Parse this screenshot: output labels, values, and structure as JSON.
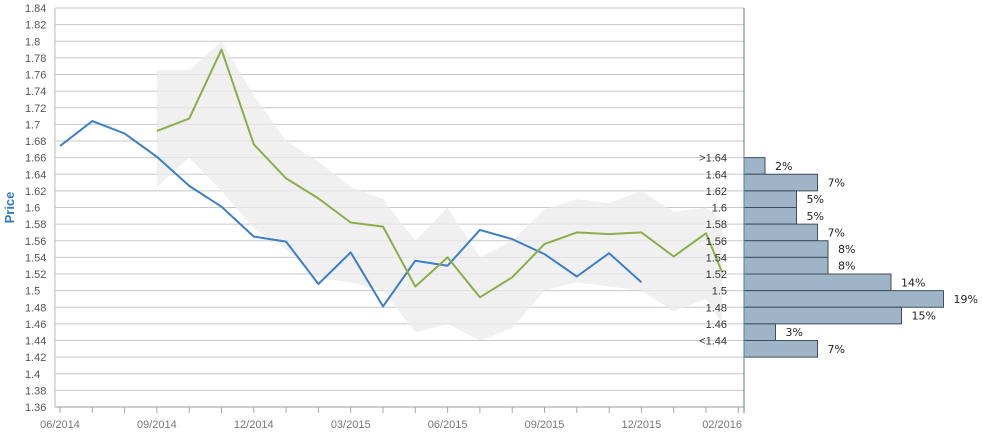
{
  "chart_data": {
    "type": "line",
    "ylabel": "Price",
    "ylim": [
      1.36,
      1.84
    ],
    "y_ticks": [
      "1.36",
      "1.38",
      "1.4",
      "1.42",
      "1.44",
      "1.46",
      "1.48",
      "1.5",
      "1.52",
      "1.54",
      "1.56",
      "1.58",
      "1.6",
      "1.62",
      "1.64",
      "1.66",
      "1.68",
      "1.7",
      "1.72",
      "1.74",
      "1.76",
      "1.78",
      "1.8",
      "1.82",
      "1.84"
    ],
    "x_labels": [
      {
        "label": "06/2014",
        "month": 0
      },
      {
        "label": "09/2014",
        "month": 3
      },
      {
        "label": "12/2014",
        "month": 6
      },
      {
        "label": "03/2015",
        "month": 9
      },
      {
        "label": "06/2015",
        "month": 12
      },
      {
        "label": "09/2015",
        "month": 15
      },
      {
        "label": "12/2015",
        "month": 18
      },
      {
        "label": "02/2016",
        "month": 20.5
      }
    ],
    "grid": true,
    "series": [
      {
        "color": "#3a7fc8",
        "points": [
          {
            "month": 0,
            "value": 1.674
          },
          {
            "month": 1,
            "value": 1.704
          },
          {
            "month": 2,
            "value": 1.689
          },
          {
            "month": 3,
            "value": 1.661
          },
          {
            "month": 4,
            "value": 1.626
          },
          {
            "month": 5,
            "value": 1.601
          },
          {
            "month": 6,
            "value": 1.565
          },
          {
            "month": 7,
            "value": 1.559
          },
          {
            "month": 8,
            "value": 1.508
          },
          {
            "month": 9,
            "value": 1.546
          },
          {
            "month": 10,
            "value": 1.481
          },
          {
            "month": 11,
            "value": 1.536
          },
          {
            "month": 12,
            "value": 1.53
          },
          {
            "month": 13,
            "value": 1.573
          },
          {
            "month": 14,
            "value": 1.562
          },
          {
            "month": 15,
            "value": 1.544
          },
          {
            "month": 16,
            "value": 1.517
          },
          {
            "month": 17,
            "value": 1.545
          },
          {
            "month": 18,
            "value": 1.51
          }
        ]
      },
      {
        "color": "#8aae4a",
        "points": [
          {
            "month": 3,
            "value": 1.692
          },
          {
            "month": 4,
            "value": 1.707
          },
          {
            "month": 5,
            "value": 1.79
          },
          {
            "month": 6,
            "value": 1.676
          },
          {
            "month": 7,
            "value": 1.635
          },
          {
            "month": 8,
            "value": 1.611
          },
          {
            "month": 9,
            "value": 1.582
          },
          {
            "month": 10,
            "value": 1.577
          },
          {
            "month": 11,
            "value": 1.505
          },
          {
            "month": 12,
            "value": 1.54
          },
          {
            "month": 13,
            "value": 1.492
          },
          {
            "month": 14,
            "value": 1.516
          },
          {
            "month": 15,
            "value": 1.556
          },
          {
            "month": 16,
            "value": 1.57
          },
          {
            "month": 17,
            "value": 1.568
          },
          {
            "month": 18,
            "value": 1.57
          },
          {
            "month": 19,
            "value": 1.541
          },
          {
            "month": 20,
            "value": 1.569
          },
          {
            "month": 20.5,
            "value": 1.522
          }
        ]
      }
    ],
    "band": {
      "color": "#ebebeb",
      "upper": [
        {
          "month": 3,
          "value": 1.765
        },
        {
          "month": 4,
          "value": 1.765
        },
        {
          "month": 5,
          "value": 1.8
        },
        {
          "month": 6,
          "value": 1.735
        },
        {
          "month": 7,
          "value": 1.68
        },
        {
          "month": 8,
          "value": 1.655
        },
        {
          "month": 9,
          "value": 1.625
        },
        {
          "month": 10,
          "value": 1.61
        },
        {
          "month": 11,
          "value": 1.56
        },
        {
          "month": 12,
          "value": 1.6
        },
        {
          "month": 13,
          "value": 1.54
        },
        {
          "month": 14,
          "value": 1.56
        },
        {
          "month": 15,
          "value": 1.598
        },
        {
          "month": 16,
          "value": 1.61
        },
        {
          "month": 17,
          "value": 1.605
        },
        {
          "month": 18,
          "value": 1.62
        },
        {
          "month": 19,
          "value": 1.595
        },
        {
          "month": 20,
          "value": 1.6
        },
        {
          "month": 20.5,
          "value": 1.585
        }
      ],
      "lower": [
        {
          "month": 20.5,
          "value": 1.46
        },
        {
          "month": 20,
          "value": 1.49
        },
        {
          "month": 19,
          "value": 1.475
        },
        {
          "month": 18,
          "value": 1.5
        },
        {
          "month": 17,
          "value": 1.505
        },
        {
          "month": 16,
          "value": 1.51
        },
        {
          "month": 15,
          "value": 1.5
        },
        {
          "month": 14,
          "value": 1.455
        },
        {
          "month": 13,
          "value": 1.44
        },
        {
          "month": 12,
          "value": 1.46
        },
        {
          "month": 11,
          "value": 1.45
        },
        {
          "month": 10,
          "value": 1.5
        },
        {
          "month": 9,
          "value": 1.51
        },
        {
          "month": 8,
          "value": 1.515
        },
        {
          "month": 7,
          "value": 1.55
        },
        {
          "month": 6,
          "value": 1.575
        },
        {
          "month": 5,
          "value": 1.62
        },
        {
          "month": 4,
          "value": 1.66
        },
        {
          "month": 3,
          "value": 1.625
        }
      ]
    },
    "distribution": {
      "color": "#9fb4c6",
      "bins": [
        {
          "label": ">1.64",
          "value": 1.65,
          "percent": 2,
          "percent_label": "2%"
        },
        {
          "label": "1.64",
          "value": 1.63,
          "percent": 7,
          "percent_label": "7%"
        },
        {
          "label": "1.62",
          "value": 1.61,
          "percent": 5,
          "percent_label": "5%"
        },
        {
          "label": "1.6",
          "value": 1.59,
          "percent": 5,
          "percent_label": "5%"
        },
        {
          "label": "1.58",
          "value": 1.57,
          "percent": 7,
          "percent_label": "7%"
        },
        {
          "label": "1.56",
          "value": 1.55,
          "percent": 8,
          "percent_label": "8%"
        },
        {
          "label": "1.54",
          "value": 1.53,
          "percent": 8,
          "percent_label": "8%"
        },
        {
          "label": "1.52",
          "value": 1.51,
          "percent": 14,
          "percent_label": "14%"
        },
        {
          "label": "1.5",
          "value": 1.49,
          "percent": 19,
          "percent_label": "19%"
        },
        {
          "label": "1.48",
          "value": 1.47,
          "percent": 15,
          "percent_label": "15%"
        },
        {
          "label": "1.46",
          "value": 1.45,
          "percent": 3,
          "percent_label": "3%"
        },
        {
          "label": "<1.44",
          "value": 1.43,
          "percent": 7,
          "percent_label": "7%"
        }
      ]
    }
  }
}
